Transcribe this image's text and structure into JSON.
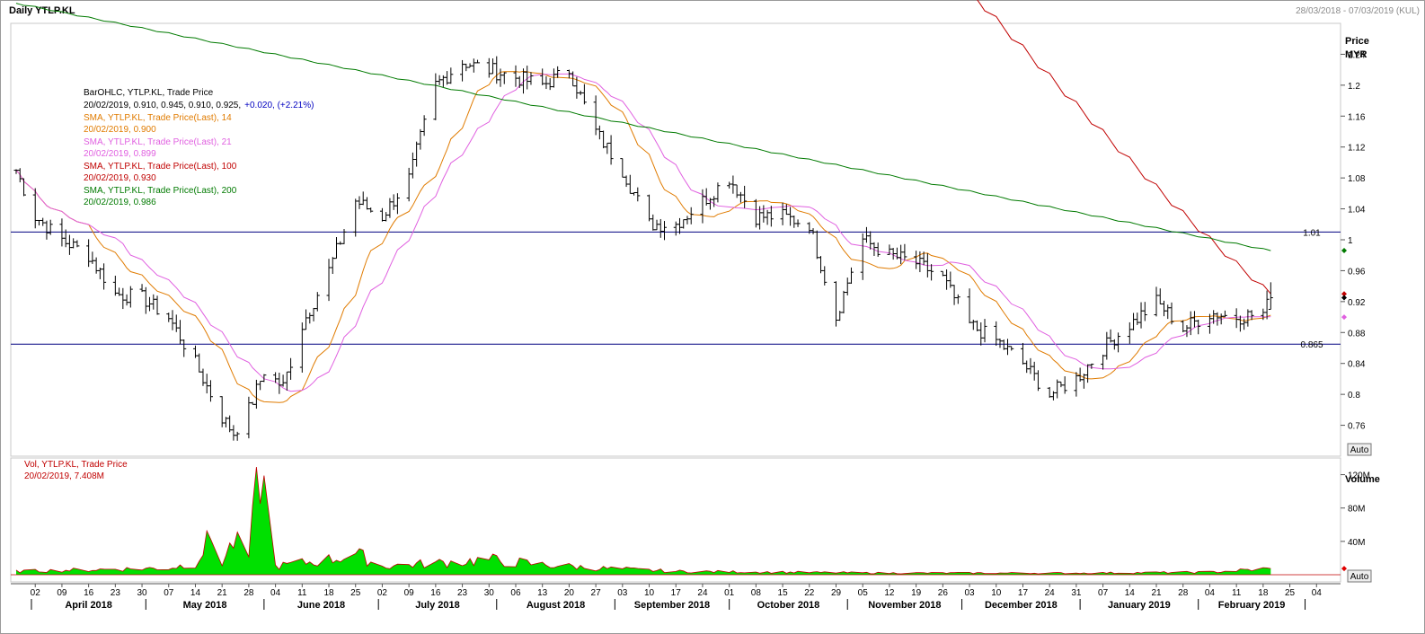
{
  "header": {
    "title": "Daily YTLP.KL",
    "date_range": "28/03/2018 - 07/03/2019 (KUL)"
  },
  "price_axis": {
    "title": "Price",
    "unit": "MYR",
    "ticks": [
      "1.24",
      "1.2",
      "1.16",
      "1.12",
      "1.08",
      "1.04",
      "1",
      "0.96",
      "0.92",
      "0.88",
      "0.84",
      "0.8",
      "0.76"
    ],
    "auto_label": "Auto"
  },
  "volume_axis": {
    "title": "Volume",
    "ticks": [
      "120M",
      "80M",
      "40M"
    ],
    "auto_label": "Auto"
  },
  "legend": {
    "bar": {
      "line1": "BarOHLC, YTLP.KL, Trade Price",
      "line2_values": "20/02/2019, 0.910, 0.945, 0.910, 0.925,",
      "line2_change": "+0.020, (+2.21%)"
    },
    "sma14": {
      "label": "SMA, YTLP.KL, Trade Price(Last),  14",
      "value": "20/02/2019, 0.900",
      "color": "#e07b00"
    },
    "sma21": {
      "label": "SMA, YTLP.KL, Trade Price(Last),  21",
      "value": "20/02/2019, 0.899",
      "color": "#e060e0"
    },
    "sma100": {
      "label": "SMA, YTLP.KL, Trade Price(Last),  100",
      "value": "20/02/2019, 0.930",
      "color": "#c00000"
    },
    "sma200": {
      "label": "SMA, YTLP.KL, Trade Price(Last),  200",
      "value": "20/02/2019, 0.986",
      "color": "#007a00"
    }
  },
  "volume_legend": {
    "line1": "Vol, YTLP.KL, Trade Price",
    "line2": "20/02/2019, 7.408M",
    "color": "#c00000"
  },
  "hlines": [
    {
      "value": 1.01,
      "label": "1.01",
      "color": "#000080"
    },
    {
      "value": 0.865,
      "label": "0.865",
      "color": "#000080"
    }
  ],
  "x_axis": {
    "day_ticks": [
      "02",
      "09",
      "16",
      "23",
      "30",
      "07",
      "14",
      "21",
      "28",
      "04",
      "11",
      "18",
      "25",
      "02",
      "09",
      "16",
      "23",
      "30",
      "06",
      "13",
      "20",
      "27",
      "03",
      "10",
      "17",
      "24",
      "01",
      "08",
      "15",
      "22",
      "29",
      "05",
      "12",
      "19",
      "26",
      "03",
      "10",
      "17",
      "24",
      "31",
      "07",
      "14",
      "21",
      "28",
      "04",
      "11",
      "18",
      "25",
      "04"
    ],
    "months": [
      "April 2018",
      "May 2018",
      "June 2018",
      "July 2018",
      "August 2018",
      "September 2018",
      "October 2018",
      "November 2018",
      "December 2018",
      "January 2019",
      "February 2019"
    ]
  },
  "chart_data": {
    "type": "bar",
    "title": "Daily YTLP.KL",
    "x_start": "2018-03-28",
    "x_end": "2019-03-07",
    "price_ylim": [
      0.72,
      1.28
    ],
    "volume_ylim": [
      0,
      140
    ],
    "volume_unit": "M",
    "grid": false,
    "legend_position": "top-left",
    "series": [
      {
        "name": "BarOHLC, YTLP.KL, Trade Price",
        "color": "#000000"
      },
      {
        "name": "SMA, YTLP.KL, Trade Price(Last),  14",
        "color": "#e07b00"
      },
      {
        "name": "SMA, YTLP.KL, Trade Price(Last),  21",
        "color": "#e060e0"
      },
      {
        "name": "SMA, YTLP.KL, Trade Price(Last),  100",
        "color": "#c00000"
      },
      {
        "name": "SMA, YTLP.KL, Trade Price(Last),  200",
        "color": "#007a00"
      },
      {
        "name": "Vol, YTLP.KL, Trade Price",
        "color": "#00e000"
      }
    ],
    "close_keypoints": [
      [
        "2018-03-28",
        1.09
      ],
      [
        "2018-04-02",
        1.03
      ],
      [
        "2018-04-09",
        1.0
      ],
      [
        "2018-04-16",
        0.98
      ],
      [
        "2018-04-23",
        0.93
      ],
      [
        "2018-04-30",
        0.925
      ],
      [
        "2018-05-07",
        0.9
      ],
      [
        "2018-05-14",
        0.84
      ],
      [
        "2018-05-21",
        0.77
      ],
      [
        "2018-05-24",
        0.75
      ],
      [
        "2018-05-28",
        0.78
      ],
      [
        "2018-06-01",
        0.83
      ],
      [
        "2018-06-06",
        0.81
      ],
      [
        "2018-06-11",
        0.89
      ],
      [
        "2018-06-18",
        0.96
      ],
      [
        "2018-06-25",
        1.05
      ],
      [
        "2018-07-02",
        1.03
      ],
      [
        "2018-07-09",
        1.08
      ],
      [
        "2018-07-16",
        1.2
      ],
      [
        "2018-07-23",
        1.23
      ],
      [
        "2018-07-30",
        1.22
      ],
      [
        "2018-08-06",
        1.21
      ],
      [
        "2018-08-13",
        1.2
      ],
      [
        "2018-08-20",
        1.22
      ],
      [
        "2018-08-27",
        1.14
      ],
      [
        "2018-09-03",
        1.09
      ],
      [
        "2018-09-10",
        1.02
      ],
      [
        "2018-09-17",
        1.02
      ],
      [
        "2018-09-24",
        1.05
      ],
      [
        "2018-10-01",
        1.08
      ],
      [
        "2018-10-08",
        1.03
      ],
      [
        "2018-10-15",
        1.03
      ],
      [
        "2018-10-22",
        1.02
      ],
      [
        "2018-10-29",
        0.9
      ],
      [
        "2018-11-02",
        0.96
      ],
      [
        "2018-11-05",
        1.0
      ],
      [
        "2018-11-12",
        0.98
      ],
      [
        "2018-11-19",
        0.97
      ],
      [
        "2018-11-26",
        0.95
      ],
      [
        "2018-12-03",
        0.89
      ],
      [
        "2018-12-10",
        0.87
      ],
      [
        "2018-12-17",
        0.84
      ],
      [
        "2018-12-24",
        0.8
      ],
      [
        "2018-12-31",
        0.82
      ],
      [
        "2019-01-07",
        0.86
      ],
      [
        "2019-01-14",
        0.89
      ],
      [
        "2019-01-21",
        0.92
      ],
      [
        "2019-01-28",
        0.885
      ],
      [
        "2019-02-04",
        0.905
      ],
      [
        "2019-02-11",
        0.9
      ],
      [
        "2019-02-18",
        0.905
      ],
      [
        "2019-02-20",
        0.925
      ]
    ],
    "last_bar": {
      "date": "2019-02-20",
      "open": 0.91,
      "high": 0.945,
      "low": 0.91,
      "close": 0.925,
      "change": 0.02,
      "change_pct": 2.21
    },
    "sma_last": {
      "sma14": 0.9,
      "sma21": 0.899,
      "sma100": 0.93,
      "sma200": 0.986
    },
    "volume_keypoints_M": [
      [
        "2018-03-28",
        4
      ],
      [
        "2018-04-16",
        6
      ],
      [
        "2018-05-07",
        8
      ],
      [
        "2018-05-14",
        14
      ],
      [
        "2018-05-18",
        45
      ],
      [
        "2018-05-21",
        15
      ],
      [
        "2018-05-24",
        40
      ],
      [
        "2018-05-28",
        22
      ],
      [
        "2018-05-31",
        130
      ],
      [
        "2018-06-04",
        10
      ],
      [
        "2018-06-18",
        18
      ],
      [
        "2018-06-25",
        25
      ],
      [
        "2018-07-02",
        10
      ],
      [
        "2018-07-16",
        14
      ],
      [
        "2018-07-30",
        18
      ],
      [
        "2018-08-13",
        12
      ],
      [
        "2018-08-27",
        8
      ],
      [
        "2018-09-17",
        4
      ],
      [
        "2018-10-15",
        3
      ],
      [
        "2018-11-12",
        2
      ],
      [
        "2018-12-03",
        2
      ],
      [
        "2019-01-02",
        2
      ],
      [
        "2019-02-04",
        3
      ],
      [
        "2019-02-20",
        7.408
      ]
    ]
  }
}
